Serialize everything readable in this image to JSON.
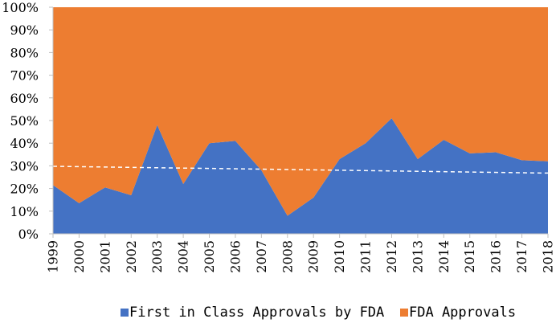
{
  "chart_data": {
    "type": "area",
    "stacked": true,
    "percent": true,
    "categories": [
      "1999",
      "2000",
      "2001",
      "2002",
      "2003",
      "2004",
      "2005",
      "2006",
      "2007",
      "2008",
      "2009",
      "2010",
      "2011",
      "2012",
      "2013",
      "2014",
      "2015",
      "2016",
      "2017",
      "2018"
    ],
    "ylim": [
      0,
      100
    ],
    "yticks": [
      "0%",
      "10%",
      "20%",
      "30%",
      "40%",
      "50%",
      "60%",
      "70%",
      "80%",
      "90%",
      "100%"
    ],
    "series": [
      {
        "name": "First in Class Approvals by FDA",
        "color": "#4472c4",
        "values": [
          21.5,
          13.5,
          20.5,
          17,
          48,
          22,
          40,
          41,
          28,
          8,
          16,
          33,
          40,
          51,
          33,
          41.5,
          35.5,
          36,
          32.5,
          32
        ]
      },
      {
        "name": "FDA Approvals",
        "color": "#ed7d31",
        "values": [
          78.5,
          86.5,
          79.5,
          83,
          52,
          78,
          60,
          59,
          72,
          92,
          84,
          67,
          60,
          49,
          67,
          58.5,
          64.5,
          64,
          67.5,
          68
        ]
      }
    ],
    "trendline": {
      "of_series": "First in Class Approvals by FDA",
      "style": "dashed",
      "color": "#ffffff",
      "start": 29.8,
      "end": 26.8
    },
    "grid": false,
    "legend_position": "bottom"
  }
}
